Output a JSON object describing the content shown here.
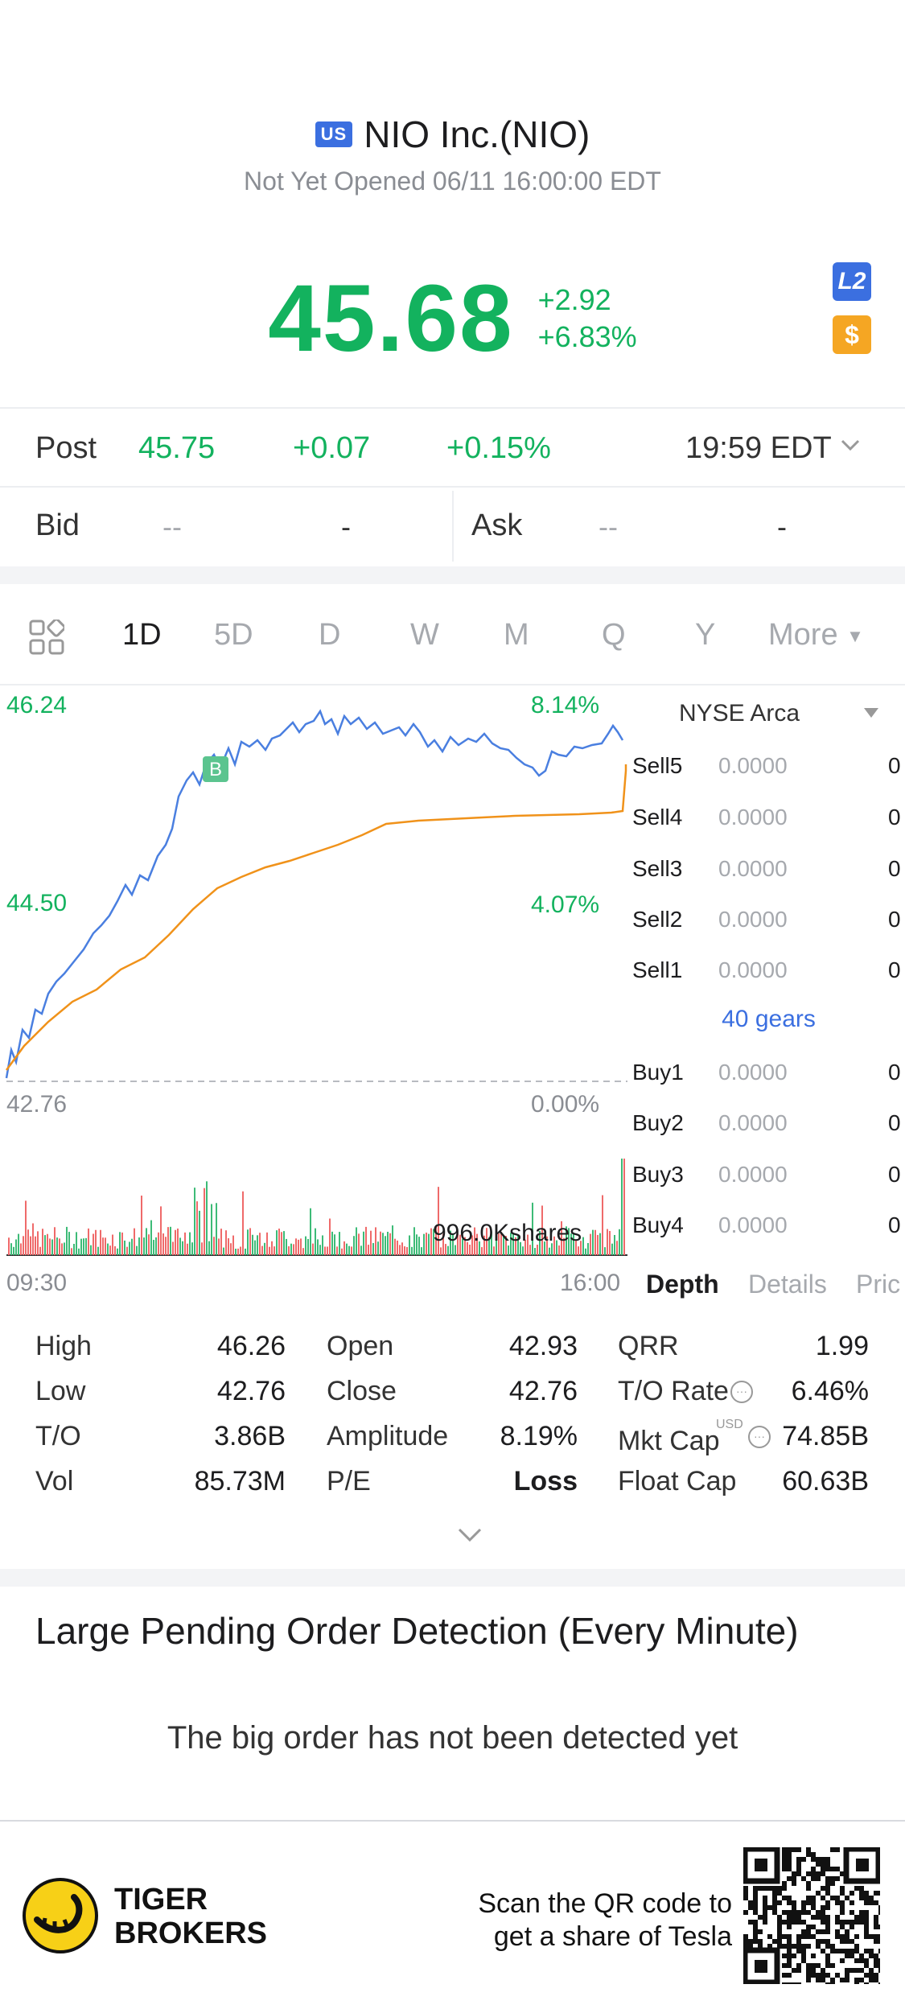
{
  "header": {
    "market_badge": "US",
    "stock_name": "NIO Inc.(NIO)",
    "status": "Not Yet Opened 06/11 16:00:00 EDT",
    "price": "45.68",
    "change": "+2.92",
    "change_pct": "+6.83%",
    "l2_badge": "L2",
    "currency_badge": "$",
    "colors": {
      "up": "#13b25e",
      "accent": "#3b6fe0",
      "badge_gold": "#f5a623"
    }
  },
  "post": {
    "label": "Post",
    "price": "45.75",
    "change": "+0.07",
    "change_pct": "+0.15%",
    "time": "19:59 EDT"
  },
  "quote": {
    "bid_label": "Bid",
    "bid_price": "--",
    "bid_size": "-",
    "ask_label": "Ask",
    "ask_price": "--",
    "ask_size": "-"
  },
  "tabs": [
    "1D",
    "5D",
    "D",
    "W",
    "M",
    "Q",
    "Y"
  ],
  "tabs_more": "More",
  "chart": {
    "high_price": "46.24",
    "high_pct": "8.14%",
    "mid_price": "44.50",
    "mid_pct": "4.07%",
    "low_price": "42.76",
    "low_pct": "0.00%",
    "marker": "B",
    "volume_label": "996.0Kshares",
    "time_start": "09:30",
    "time_end": "16:00"
  },
  "depth": {
    "exchange": "NYSE Arca",
    "gears": "40 gears",
    "sells": [
      {
        "label": "Sell5",
        "price": "0.0000",
        "qty": "0"
      },
      {
        "label": "Sell4",
        "price": "0.0000",
        "qty": "0"
      },
      {
        "label": "Sell3",
        "price": "0.0000",
        "qty": "0"
      },
      {
        "label": "Sell2",
        "price": "0.0000",
        "qty": "0"
      },
      {
        "label": "Sell1",
        "price": "0.0000",
        "qty": "0"
      }
    ],
    "buys": [
      {
        "label": "Buy1",
        "price": "0.0000",
        "qty": "0"
      },
      {
        "label": "Buy2",
        "price": "0.0000",
        "qty": "0"
      },
      {
        "label": "Buy3",
        "price": "0.0000",
        "qty": "0"
      },
      {
        "label": "Buy4",
        "price": "0.0000",
        "qty": "0"
      }
    ],
    "tabs": [
      "Depth",
      "Details",
      "Pric"
    ]
  },
  "stats": {
    "high_label": "High",
    "high": "46.26",
    "low_label": "Low",
    "low": "42.76",
    "to_label": "T/O",
    "to": "3.86B",
    "vol_label": "Vol",
    "vol": "85.73M",
    "open_label": "Open",
    "open": "42.93",
    "close_label": "Close",
    "close": "42.76",
    "amp_label": "Amplitude",
    "amp": "8.19%",
    "pe_label": "P/E",
    "pe": "Loss",
    "qrr_label": "QRR",
    "qrr": "1.99",
    "torate_label": "T/O Rate",
    "torate": "6.46%",
    "mktcap_label": "Mkt Cap",
    "mktcap_unit": "USD",
    "mktcap": "74.85B",
    "floatcap_label": "Float Cap",
    "floatcap": "60.63B"
  },
  "pending": {
    "title": "Large Pending Order Detection (Every Minute)",
    "message": "The big order has not been detected yet"
  },
  "footer": {
    "brand_line1": "TIGER",
    "brand_line2": "BROKERS",
    "scan_line1": "Scan the QR code to",
    "scan_line2": "get a share of Tesla"
  }
}
